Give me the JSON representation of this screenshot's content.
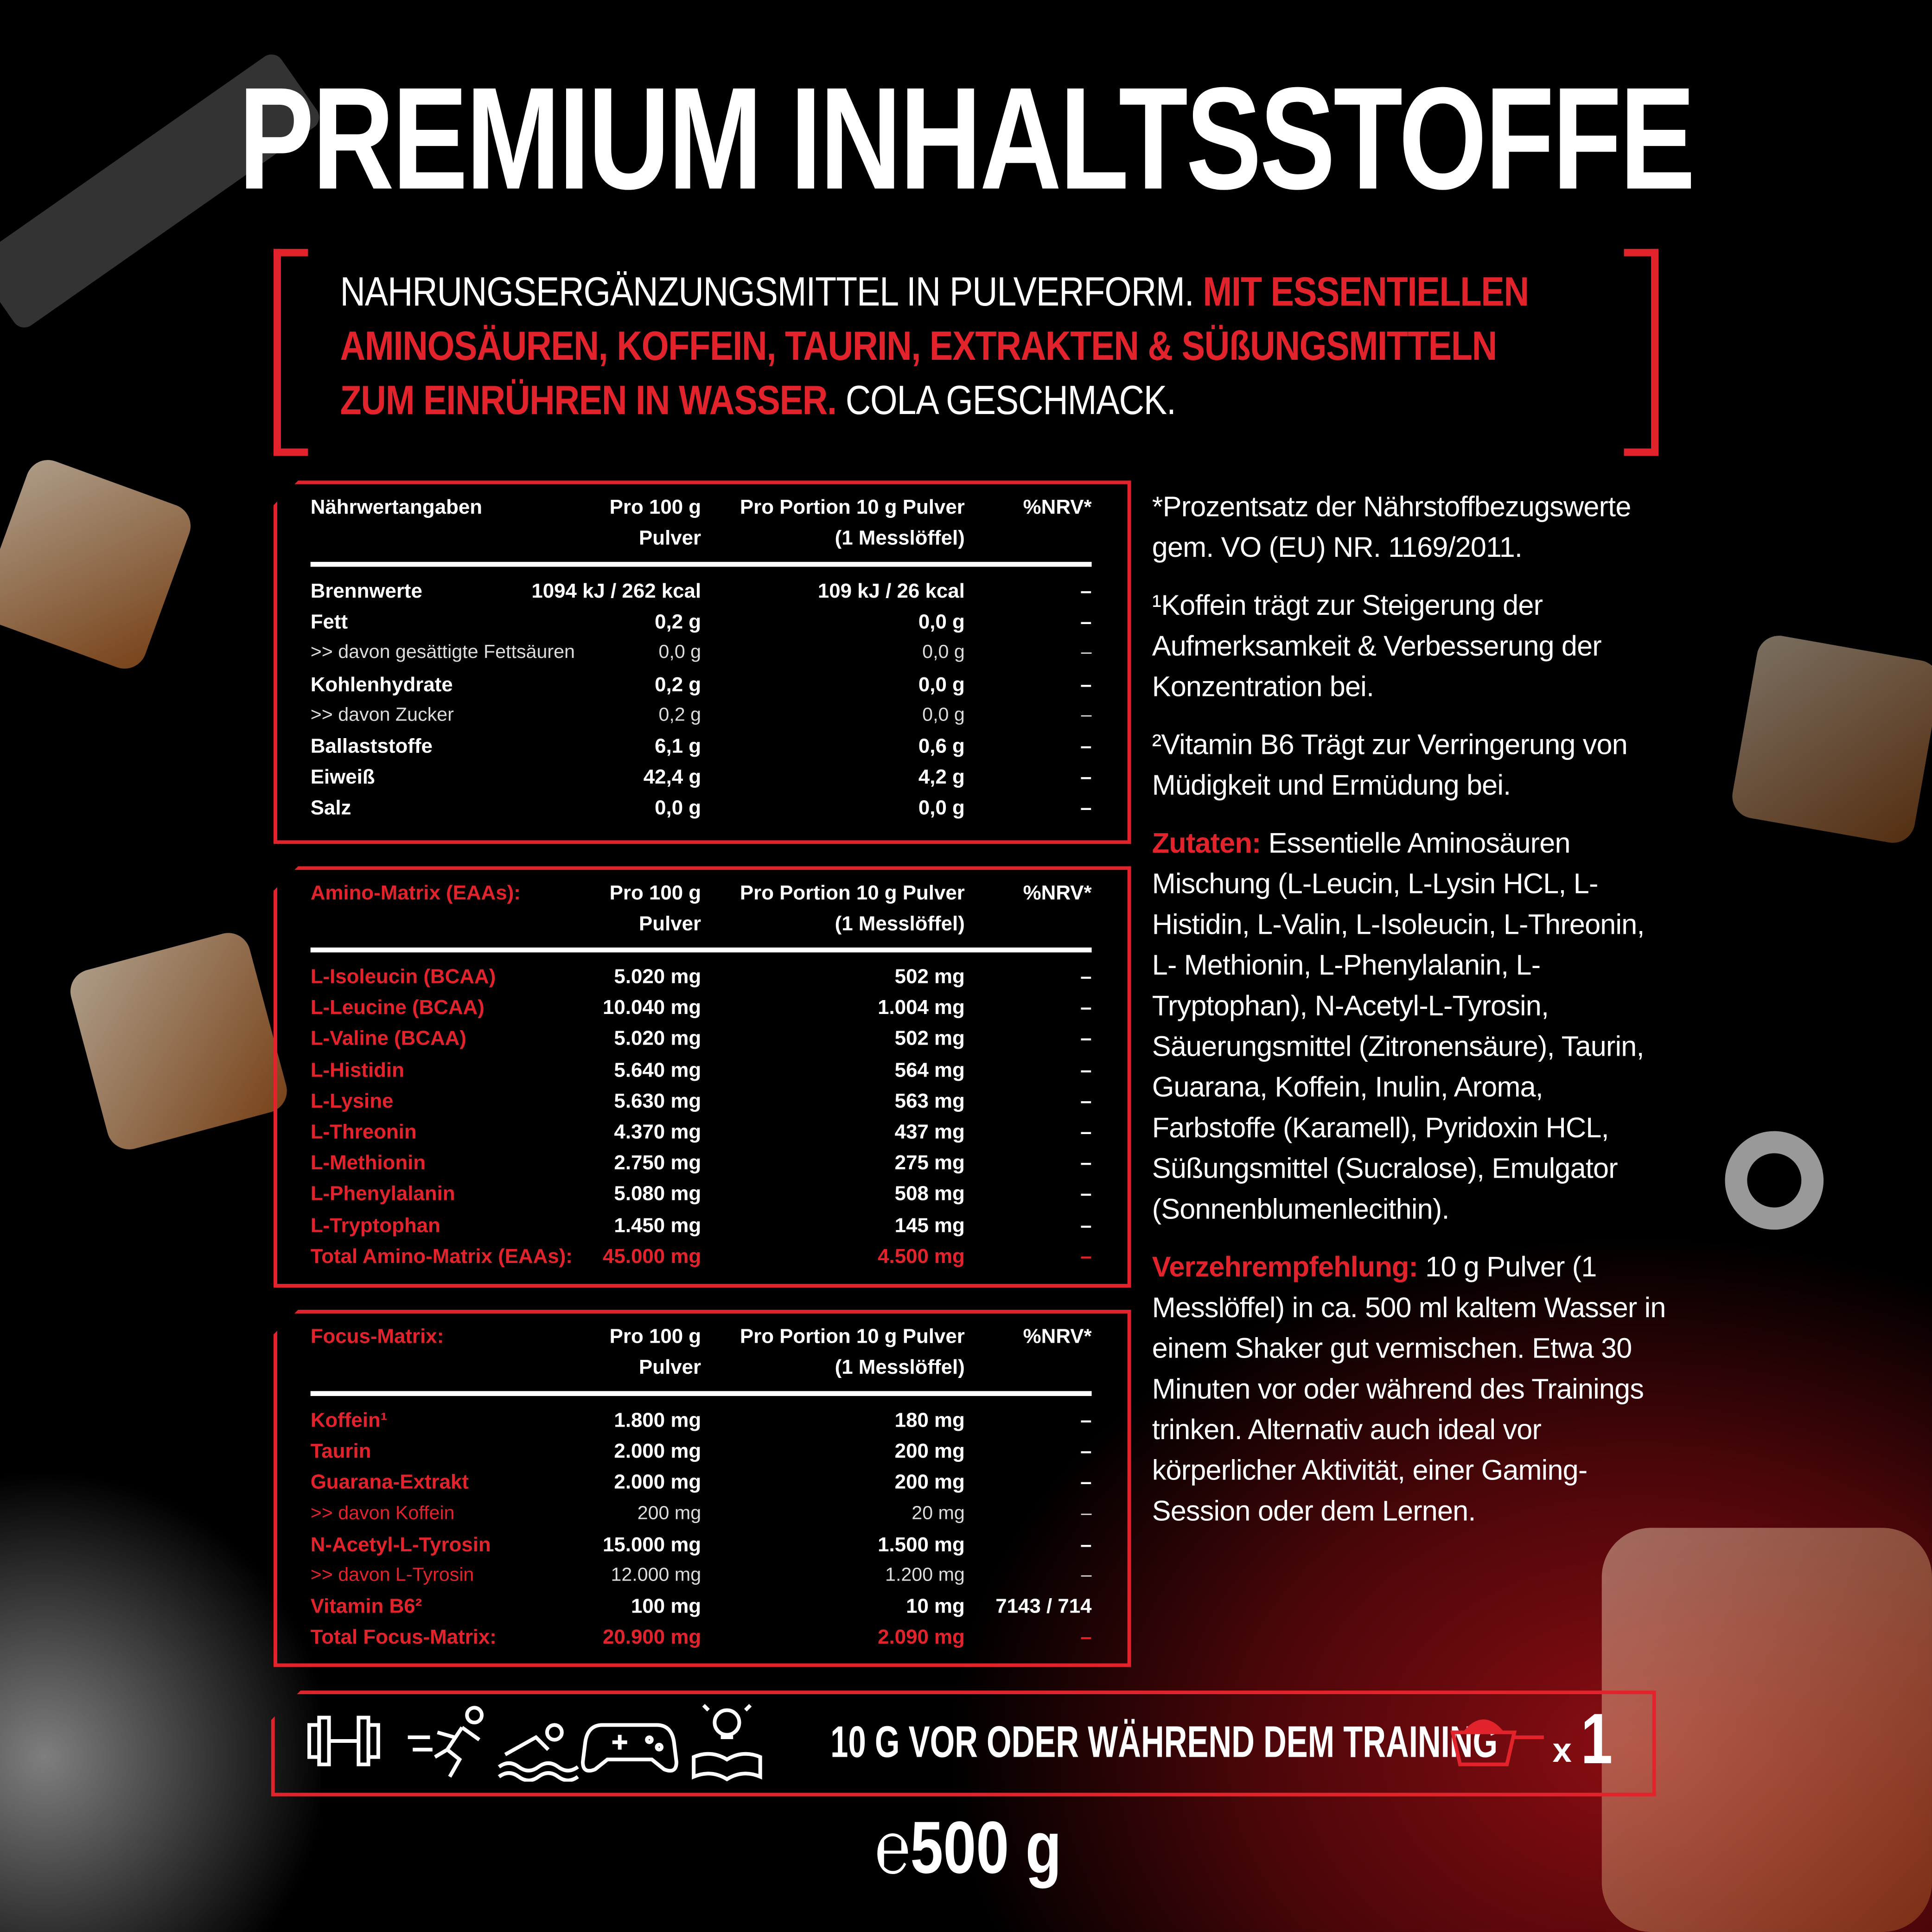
{
  "title": "PREMIUM INHALTSSTOFFE",
  "subtitle": {
    "l1_white": "NAHRUNGSERGÄNZUNGSMITTEL IN PULVERFORM. ",
    "l1_red": "MIT ESSENTIELLEN",
    "l2_red": "AMINOSÄUREN, KOFFEIN, TAURIN, EXTRAKTEN & SÜßUNGSMITTELN",
    "l3_red": "ZUM EINRÜHREN IN WASSER.",
    "l3_white": " COLA GESCHMACK."
  },
  "colors": {
    "accent": "#e3232b",
    "background": "#000000"
  },
  "tables": [
    {
      "heading": "Nährwertangaben",
      "heading_red": false,
      "col1": [
        "Pro 100 g",
        "Pulver"
      ],
      "col2": [
        "Pro Portion 10 g Pulver",
        "(1 Messlöffel)"
      ],
      "col3": "%NRV*",
      "rows": [
        {
          "label": "Brennwerte",
          "v1": "1094 kJ / 262 kcal",
          "v2": "109 kJ / 26 kcal",
          "nrv": "–",
          "type": "main"
        },
        {
          "label": "Fett",
          "v1": "0,2 g",
          "v2": "0,0 g",
          "nrv": "–",
          "type": "main"
        },
        {
          "label": ">> davon gesättigte Fettsäuren",
          "v1": "0,0 g",
          "v2": "0,0 g",
          "nrv": "–",
          "type": "sub"
        },
        {
          "label": "Kohlenhydrate",
          "v1": "0,2 g",
          "v2": "0,0 g",
          "nrv": "–",
          "type": "main"
        },
        {
          "label": ">> davon Zucker",
          "v1": "0,2 g",
          "v2": "0,0 g",
          "nrv": "–",
          "type": "sub"
        },
        {
          "label": "Ballaststoffe",
          "v1": "6,1 g",
          "v2": "0,6 g",
          "nrv": "–",
          "type": "main"
        },
        {
          "label": "Eiweiß",
          "v1": "42,4 g",
          "v2": "4,2 g",
          "nrv": "–",
          "type": "main"
        },
        {
          "label": "Salz",
          "v1": "0,0 g",
          "v2": "0,0 g",
          "nrv": "–",
          "type": "main"
        }
      ]
    },
    {
      "heading": "Amino-Matrix (EAAs):",
      "heading_red": true,
      "col1": [
        "Pro 100 g",
        "Pulver"
      ],
      "col2": [
        "Pro Portion 10 g Pulver",
        "(1 Messlöffel)"
      ],
      "col3": "%NRV*",
      "rows": [
        {
          "label": "L-Isoleucin (BCAA)",
          "v1": "5.020 mg",
          "v2": "502 mg",
          "nrv": "–",
          "type": "main"
        },
        {
          "label": "L-Leucine (BCAA)",
          "v1": "10.040 mg",
          "v2": "1.004 mg",
          "nrv": "–",
          "type": "main"
        },
        {
          "label": "L-Valine (BCAA)",
          "v1": "5.020 mg",
          "v2": "502 mg",
          "nrv": "–",
          "type": "main"
        },
        {
          "label": "L-Histidin",
          "v1": "5.640 mg",
          "v2": "564 mg",
          "nrv": "–",
          "type": "main"
        },
        {
          "label": "L-Lysine",
          "v1": "5.630 mg",
          "v2": "563 mg",
          "nrv": "–",
          "type": "main"
        },
        {
          "label": "L-Threonin",
          "v1": "4.370 mg",
          "v2": "437 mg",
          "nrv": "–",
          "type": "main"
        },
        {
          "label": "L-Methionin",
          "v1": "2.750 mg",
          "v2": "275 mg",
          "nrv": "–",
          "type": "main"
        },
        {
          "label": "L-Phenylalanin",
          "v1": "5.080 mg",
          "v2": "508 mg",
          "nrv": "–",
          "type": "main"
        },
        {
          "label": "L-Tryptophan",
          "v1": "1.450 mg",
          "v2": "145 mg",
          "nrv": "–",
          "type": "main"
        },
        {
          "label": "Total Amino-Matrix (EAAs):",
          "v1": "45.000 mg",
          "v2": "4.500 mg",
          "nrv": "–",
          "type": "total"
        }
      ]
    },
    {
      "heading": "Focus-Matrix:",
      "heading_red": true,
      "col1": [
        "Pro 100 g",
        "Pulver"
      ],
      "col2": [
        "Pro Portion 10 g Pulver",
        "(1 Messlöffel)"
      ],
      "col3": "%NRV*",
      "rows": [
        {
          "label": "Koffein¹",
          "v1": "1.800 mg",
          "v2": "180 mg",
          "nrv": "–",
          "type": "main"
        },
        {
          "label": "Taurin",
          "v1": "2.000 mg",
          "v2": "200 mg",
          "nrv": "–",
          "type": "main"
        },
        {
          "label": "Guarana-Extrakt",
          "v1": "2.000 mg",
          "v2": "200 mg",
          "nrv": "–",
          "type": "main"
        },
        {
          "label": ">> davon Koffein",
          "v1": "200 mg",
          "v2": "20 mg",
          "nrv": "–",
          "type": "sub"
        },
        {
          "label": "N-Acetyl-L-Tyrosin",
          "v1": "15.000 mg",
          "v2": "1.500 mg",
          "nrv": "–",
          "type": "main"
        },
        {
          "label": ">> davon L-Tyrosin",
          "v1": "12.000 mg",
          "v2": "1.200 mg",
          "nrv": "–",
          "type": "sub"
        },
        {
          "label": "Vitamin B6²",
          "v1": "100 mg",
          "v2": "10 mg",
          "nrv": "7143 / 714",
          "type": "main"
        },
        {
          "label": "Total Focus-Matrix:",
          "v1": "20.900 mg",
          "v2": "2.090 mg",
          "nrv": "–",
          "type": "total"
        }
      ]
    }
  ],
  "notes": {
    "nrv": "*Prozentsatz der Nährstoffbezugswerte gem. VO (EU) NR. 1169/2011.",
    "fn1": "¹Koffein trägt zur Steigerung der Aufmerksamkeit & Verbesserung der Konzentration bei.",
    "fn2": "²Vitamin B6 Trägt zur Verringerung von Müdigkeit und Ermüdung bei.",
    "ingredients_label": "Zutaten:",
    "ingredients": " Essentielle Aminosäuren Mischung (L-Leucin, L-Lysin HCL, L-Histidin, L-Valin, L-Isoleucin, L-Threonin, L- Methionin, L-Phenylalanin, L-Tryptophan), N-Acetyl-L-Tyrosin, Säuerungsmittel (Zitronensäure), Taurin, Guarana, Koffein, Inulin, Aroma, Farbstoffe (Karamell), Pyridoxin HCL, Süßungsmittel (Sucralose), Emulgator (Sonnenblumenlecithin).",
    "usage_label": "Verzehrempfehlung:",
    "usage": " 10 g Pulver (1 Messlöffel) in ca. 500 ml kaltem Wasser in einem Shaker gut vermischen. Etwa 30 Minuten vor oder während des Trainings trinken. Alternativ auch ideal vor körperlicher Aktivität, einer Gaming-Session oder dem Lernen."
  },
  "bar": {
    "icons": [
      "dumbbell-icon",
      "runner-icon",
      "swimmer-icon",
      "gamepad-icon",
      "lightbulb-book-icon"
    ],
    "text": "10 G VOR ODER WÄHREND DEM TRAINING",
    "scoop_icon": "scoop-icon",
    "multiplier_x": "x",
    "multiplier": "1"
  },
  "weight": "℮500 g"
}
